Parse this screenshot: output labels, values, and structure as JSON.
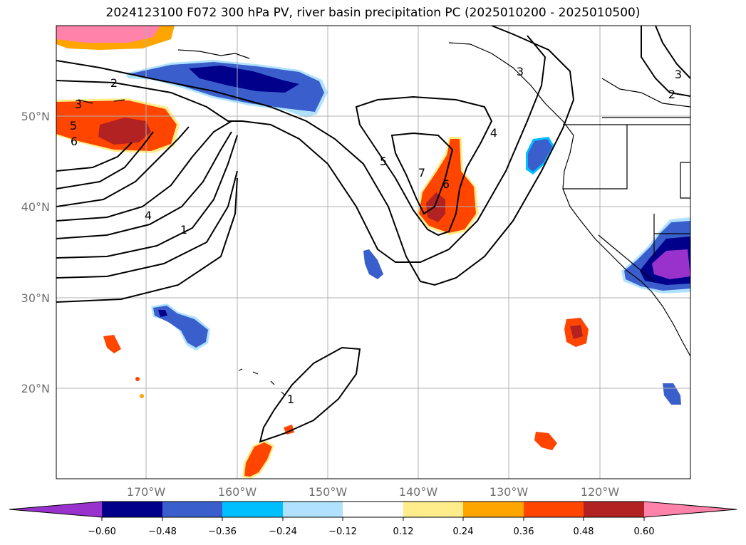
{
  "title": "2024123100 F072 300 hPa PV, river basin precipitation PC (2025010200 - 2025010500)",
  "latitude_labels": [
    "50°N",
    "40°N",
    "30°N",
    "20°N"
  ],
  "longitude_labels": [
    "170°W",
    "160°W",
    "150°W",
    "140°W",
    "130°W",
    "120°W"
  ],
  "colorbar": {
    "tick_labels": [
      "−0.60",
      "−0.48",
      "−0.36",
      "−0.24",
      "−0.12",
      "0.12",
      "0.24",
      "0.36",
      "0.48",
      "0.60"
    ],
    "colors": [
      "#9932cc",
      "#00008b",
      "#3a5fcd",
      "#00bfff",
      "#b0e2ff",
      "#ffffff",
      "#ffec8b",
      "#ffa500",
      "#ff4500",
      "#b22222",
      "#ff82ab"
    ]
  },
  "contour_labels": [
    "2",
    "3",
    "5",
    "6",
    "4",
    "1",
    "5",
    "7",
    "6",
    "4",
    "3",
    "2",
    "3",
    "1"
  ]
}
